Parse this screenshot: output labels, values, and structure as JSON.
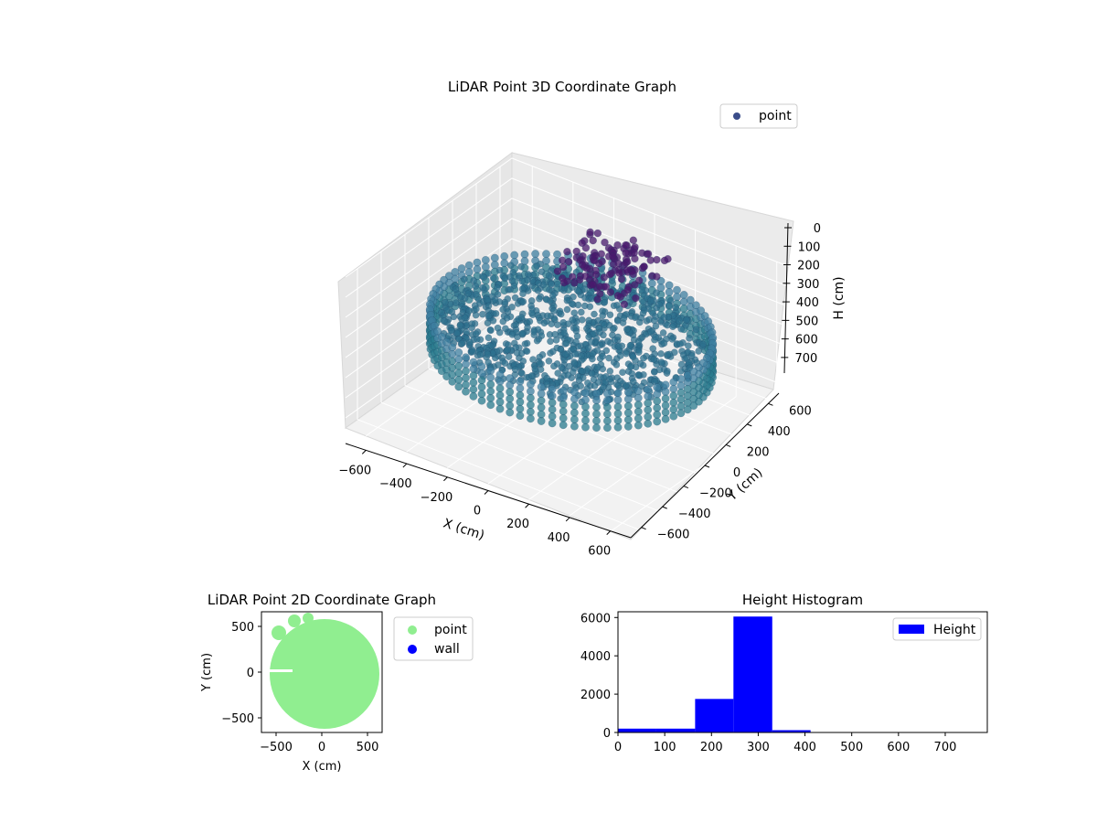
{
  "chart_data": [
    {
      "type": "scatter",
      "projection": "3d",
      "title": "LiDAR Point 3D Coordinate Graph",
      "xlabel": "X (cm)",
      "ylabel": "Y (cm)",
      "zlabel": "H (cm)",
      "xlim": [
        -700,
        700
      ],
      "ylim": [
        -700,
        700
      ],
      "zlim": [
        0,
        750
      ],
      "z_inverted": true,
      "xticks": [
        "−600",
        "−400",
        "−200",
        "0",
        "200",
        "400",
        "600"
      ],
      "yticks": [
        "−600",
        "−400",
        "−200",
        "0",
        "200",
        "400",
        "600"
      ],
      "zticks": [
        "0",
        "100",
        "200",
        "300",
        "400",
        "500",
        "600",
        "700"
      ],
      "grid": true,
      "legend": {
        "position": "upper-right",
        "entries": [
          {
            "name": "point",
            "color": "#3b4d8a"
          }
        ]
      },
      "colormap": "viridis",
      "series": [
        {
          "name": "point",
          "description_free": true,
          "clusters": [
            {
              "shape": "ring-wall",
              "radius": 600,
              "h_top": 250,
              "h_bottom": 420,
              "color": "#2a7b8e"
            },
            {
              "shape": "dense-floor",
              "x": [
                -600,
                600
              ],
              "y": [
                -600,
                600
              ],
              "h": [
                250,
                330
              ],
              "color": "#2d708e"
            },
            {
              "shape": "clump",
              "x": [
                -150,
                200
              ],
              "y": [
                100,
                500
              ],
              "h": [
                0,
                150
              ],
              "color": "#481a6c"
            }
          ]
        }
      ]
    },
    {
      "type": "scatter",
      "title": "LiDAR Point 2D Coordinate Graph",
      "xlabel": "X (cm)",
      "ylabel": "Y (cm)",
      "xlim": [
        -660,
        660
      ],
      "ylim": [
        -660,
        660
      ],
      "xticks": [
        "−500",
        "0",
        "500"
      ],
      "yticks": [
        "−500",
        "0",
        "500"
      ],
      "legend": {
        "position": "outside-right",
        "entries": [
          {
            "name": "point",
            "color": "#90ee90"
          },
          {
            "name": "wall",
            "color": "#0000ff"
          }
        ]
      },
      "series": [
        {
          "name": "point",
          "color": "#90ee90",
          "shape": "filled-disc",
          "center": [
            30,
            -20
          ],
          "radius": 600
        },
        {
          "name": "wall",
          "color": "#0000ff",
          "points": []
        }
      ]
    },
    {
      "type": "bar",
      "subtype": "histogram",
      "title": "Height Histogram",
      "xlim": [
        0,
        790
      ],
      "ylim": [
        0,
        6300
      ],
      "xticks": [
        "0",
        "100",
        "200",
        "300",
        "400",
        "500",
        "600",
        "700"
      ],
      "yticks": [
        "0",
        "2000",
        "4000",
        "6000"
      ],
      "legend": {
        "position": "upper-right",
        "entries": [
          {
            "name": "Height",
            "color": "#0000ff"
          }
        ]
      },
      "series": [
        {
          "name": "Height",
          "color": "#0000ff",
          "bin_edges": [
            0,
            82,
            165,
            247,
            330,
            412,
            495,
            577,
            660,
            742,
            790
          ],
          "counts": [
            200,
            200,
            1750,
            6050,
            120,
            10,
            5,
            5,
            5,
            5
          ]
        }
      ]
    }
  ]
}
